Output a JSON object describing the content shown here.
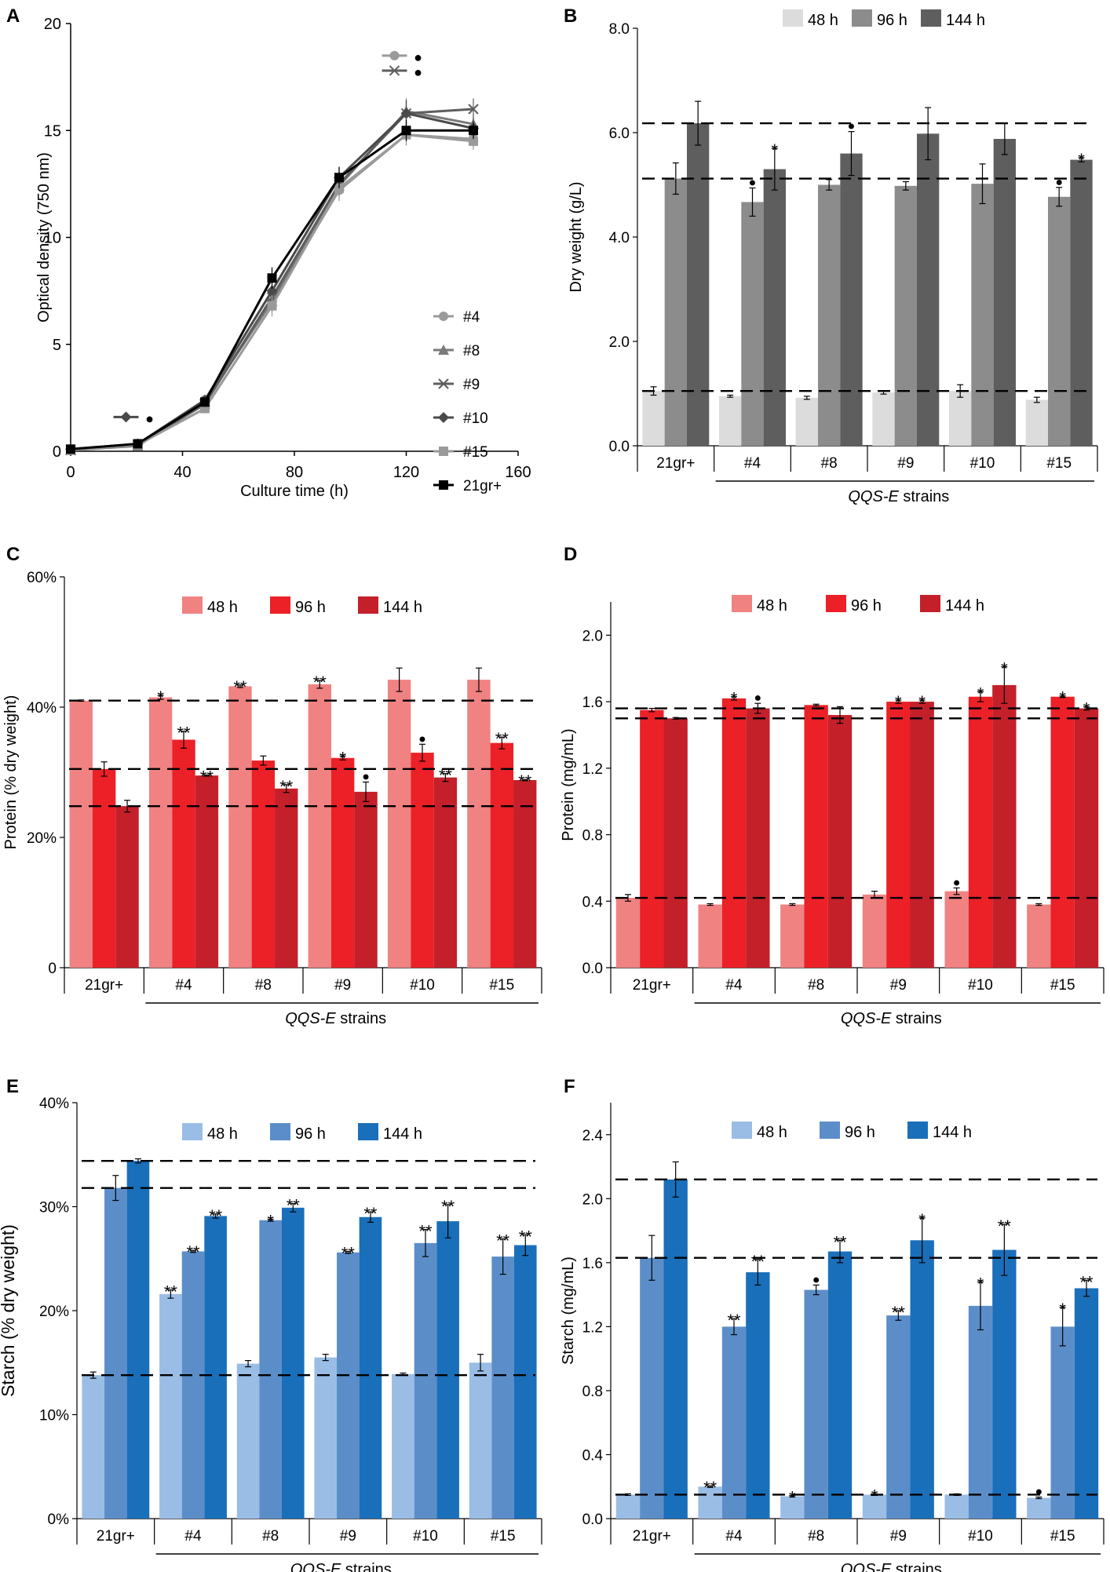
{
  "figure": {
    "colors": {
      "gray48": "#dcdcdc",
      "gray96": "#8c8c8c",
      "gray144": "#5e5e5e",
      "red48": "#f08282",
      "red96": "#ec2027",
      "red144": "#c4202a",
      "blue48": "#9abde6",
      "blue96": "#5b8ec9",
      "blue144": "#1a6fba",
      "dash": "#000000",
      "err": "#000000"
    },
    "group_caption": "QQS-E strains"
  },
  "chart_data": [
    {
      "panel": "A",
      "type": "line",
      "xlabel": "Culture time (h)",
      "ylabel": "Optical density (750 nm)",
      "xlim": [
        0,
        160
      ],
      "ylim": [
        0,
        20
      ],
      "xticks": [
        "0",
        "40",
        "80",
        "120",
        "160"
      ],
      "yticks": [
        "0",
        "5",
        "10",
        "15",
        "20"
      ],
      "x": [
        0,
        24,
        48,
        72,
        96,
        120,
        144
      ],
      "series": [
        {
          "name": "#4",
          "marker": "circle",
          "color": "#9a9a9a",
          "values": [
            0.05,
            0.3,
            2.4,
            7.0,
            12.2,
            14.8,
            14.6
          ],
          "err": [
            0.1,
            0.1,
            0.2,
            0.5,
            0.5,
            0.5,
            0.4
          ]
        },
        {
          "name": "#8",
          "marker": "triangle",
          "color": "#7a7a7a",
          "values": [
            0.05,
            0.25,
            2.3,
            7.0,
            12.4,
            15.9,
            15.3
          ],
          "err": [
            0.1,
            0.1,
            0.2,
            0.5,
            0.5,
            0.6,
            0.5
          ]
        },
        {
          "name": "#9",
          "marker": "x",
          "color": "#5e5e5e",
          "values": [
            0.05,
            0.3,
            2.2,
            7.2,
            12.5,
            15.8,
            16.0
          ],
          "err": [
            0.1,
            0.1,
            0.2,
            0.5,
            0.5,
            0.6,
            0.5
          ]
        },
        {
          "name": "#10",
          "marker": "diamond",
          "color": "#4a4a4a",
          "values": [
            0.1,
            0.35,
            2.4,
            7.5,
            12.8,
            15.8,
            15.1
          ],
          "err": [
            0.1,
            0.1,
            0.2,
            0.5,
            0.5,
            0.6,
            0.5
          ]
        },
        {
          "name": "#15",
          "marker": "square",
          "color": "#9a9a9a",
          "values": [
            0.05,
            0.3,
            2.0,
            6.8,
            12.3,
            14.8,
            14.5
          ],
          "err": [
            0.1,
            0.1,
            0.2,
            0.5,
            0.5,
            0.5,
            0.4
          ]
        },
        {
          "name": "21gr+",
          "marker": "square",
          "color": "#000000",
          "values": [
            0.1,
            0.35,
            2.3,
            8.1,
            12.8,
            15.0,
            15.0
          ],
          "err": [
            0.1,
            0.1,
            0.2,
            0.5,
            0.5,
            0.5,
            0.4
          ]
        }
      ],
      "annotations": [
        {
          "x": 120,
          "y": 18.5,
          "text": "●",
          "ref_marker": "circle"
        },
        {
          "x": 120,
          "y": 17.8,
          "text": "●",
          "ref_marker": "x"
        },
        {
          "x": 24,
          "y": 1.6,
          "text": "●",
          "ref_marker": "diamond"
        }
      ]
    },
    {
      "panel": "B",
      "type": "bar",
      "ylabel": "Dry weight (g/L)",
      "ylim": [
        0,
        8
      ],
      "yticks": [
        "0.0",
        "2.0",
        "4.0",
        "6.0",
        "8.0"
      ],
      "categories": [
        "21gr+",
        "#4",
        "#8",
        "#9",
        "#10",
        "#15"
      ],
      "legend": [
        "48 h",
        "96 h",
        "144 h"
      ],
      "palette": [
        "gray48",
        "gray96",
        "gray144"
      ],
      "series": [
        {
          "name": "48 h",
          "values": [
            1.05,
            0.95,
            0.92,
            1.02,
            1.05,
            0.88
          ],
          "err": [
            0.08,
            0.02,
            0.03,
            0.03,
            0.12,
            0.05
          ],
          "marks": [
            "",
            "",
            "",
            "",
            "",
            ""
          ]
        },
        {
          "name": "96 h",
          "values": [
            5.12,
            4.67,
            5.0,
            4.98,
            5.02,
            4.77
          ],
          "err": [
            0.3,
            0.27,
            0.1,
            0.08,
            0.38,
            0.18
          ],
          "marks": [
            "",
            "●",
            "",
            "",
            "",
            "●"
          ]
        },
        {
          "name": "144 h",
          "values": [
            6.18,
            5.3,
            5.6,
            5.98,
            5.88,
            5.48
          ],
          "err": [
            0.42,
            0.4,
            0.42,
            0.5,
            0.3,
            0.04
          ],
          "marks": [
            "",
            "*",
            "●",
            "",
            "",
            "*"
          ]
        }
      ],
      "reference_lines": [
        6.18,
        5.12,
        1.05
      ]
    },
    {
      "panel": "C",
      "type": "bar",
      "ylabel": "Protein (% dry weight)",
      "ylim": [
        0,
        60
      ],
      "yticks": [
        "0",
        "20%",
        "40%",
        "60%"
      ],
      "categories": [
        "21gr+",
        "#4",
        "#8",
        "#9",
        "#10",
        "#15"
      ],
      "legend": [
        "48 h",
        "96 h",
        "144 h"
      ],
      "palette": [
        "red48",
        "red96",
        "red144"
      ],
      "series": [
        {
          "name": "48 h",
          "values": [
            41.0,
            41.5,
            43.2,
            43.5,
            44.2,
            44.2
          ],
          "err": [
            0.1,
            0.3,
            0.2,
            0.6,
            1.8,
            1.8
          ],
          "marks": [
            "",
            "*",
            "**",
            "**",
            "",
            ""
          ]
        },
        {
          "name": "96 h",
          "values": [
            30.5,
            35.0,
            31.8,
            32.2,
            33.0,
            34.5
          ],
          "err": [
            1.1,
            1.3,
            0.7,
            0.3,
            1.3,
            0.9
          ],
          "marks": [
            "",
            "**",
            "",
            "*",
            "●",
            "**"
          ]
        },
        {
          "name": "144 h",
          "values": [
            24.8,
            29.5,
            27.5,
            27.0,
            29.2,
            28.8
          ],
          "err": [
            0.9,
            0.1,
            0.6,
            1.5,
            0.6,
            0.1
          ],
          "marks": [
            "",
            "**",
            "**",
            "●",
            "**",
            "**"
          ]
        }
      ],
      "reference_lines": [
        41.0,
        30.5,
        24.8
      ]
    },
    {
      "panel": "D",
      "type": "bar",
      "ylabel": "Protein (mg/mL)",
      "ylim": [
        0,
        2.2
      ],
      "yticks": [
        "0.0",
        "0.4",
        "0.8",
        "1.2",
        "1.6",
        "2.0"
      ],
      "categories": [
        "21gr+",
        "#4",
        "#8",
        "#9",
        "#10",
        "#15"
      ],
      "legend": [
        "48 h",
        "96 h",
        "144 h"
      ],
      "palette": [
        "red48",
        "red96",
        "red144"
      ],
      "series": [
        {
          "name": "48 h",
          "values": [
            0.42,
            0.38,
            0.38,
            0.44,
            0.46,
            0.38
          ],
          "err": [
            0.02,
            0.005,
            0.005,
            0.02,
            0.02,
            0.005
          ],
          "marks": [
            "",
            "",
            "",
            "",
            "●",
            ""
          ]
        },
        {
          "name": "96 h",
          "values": [
            1.55,
            1.62,
            1.58,
            1.6,
            1.63,
            1.63
          ],
          "err": [
            0.01,
            0.01,
            0.005,
            0.01,
            0.03,
            0.005
          ],
          "marks": [
            "",
            "*",
            "",
            "*",
            "*",
            "*"
          ]
        },
        {
          "name": "144 h",
          "values": [
            1.5,
            1.56,
            1.52,
            1.6,
            1.7,
            1.56
          ],
          "err": [
            0.005,
            0.03,
            0.05,
            0.01,
            0.11,
            0.01
          ],
          "marks": [
            "",
            "●",
            "",
            "*",
            "*",
            "*"
          ]
        }
      ],
      "reference_lines": [
        1.56,
        1.5,
        0.42
      ]
    },
    {
      "panel": "E",
      "type": "bar",
      "ylabel": "Starch (% dry weight)",
      "ylim": [
        0,
        40
      ],
      "yticks": [
        "0%",
        "10%",
        "20%",
        "30%",
        "40%"
      ],
      "categories": [
        "21gr+",
        "#4",
        "#8",
        "#9",
        "#10",
        "#15"
      ],
      "legend": [
        "48 h",
        "96 h",
        "144 h"
      ],
      "palette": [
        "blue48",
        "blue96",
        "blue144"
      ],
      "series": [
        {
          "name": "48 h",
          "values": [
            13.8,
            21.6,
            14.9,
            15.5,
            13.9,
            15.0
          ],
          "err": [
            0.3,
            0.4,
            0.3,
            0.3,
            0.1,
            0.8
          ],
          "marks": [
            "",
            "**",
            "",
            "",
            "",
            ""
          ]
        },
        {
          "name": "96 h",
          "values": [
            31.8,
            25.7,
            28.7,
            25.6,
            26.5,
            25.2
          ],
          "err": [
            1.2,
            0.1,
            0.1,
            0.1,
            1.3,
            1.7
          ],
          "marks": [
            "",
            "**",
            "*",
            "**",
            "**",
            "**"
          ]
        },
        {
          "name": "144 h",
          "values": [
            34.4,
            29.1,
            29.9,
            29.0,
            28.6,
            26.3
          ],
          "err": [
            0.2,
            0.2,
            0.4,
            0.5,
            1.6,
            1.0
          ],
          "marks": [
            "",
            "**",
            "**",
            "**",
            "**",
            "**"
          ]
        }
      ],
      "reference_lines": [
        34.4,
        31.8,
        13.8
      ]
    },
    {
      "panel": "F",
      "type": "bar",
      "ylabel": "Starch (mg/mL)",
      "ylim": [
        0,
        2.6
      ],
      "yticks": [
        "0.0",
        "0.4",
        "0.8",
        "1.2",
        "1.6",
        "2.0",
        "2.4"
      ],
      "categories": [
        "21gr+",
        "#4",
        "#8",
        "#9",
        "#10",
        "#15"
      ],
      "legend": [
        "48 h",
        "96 h",
        "144 h"
      ],
      "palette": [
        "blue48",
        "blue96",
        "blue144"
      ],
      "series": [
        {
          "name": "48 h",
          "values": [
            0.15,
            0.2,
            0.14,
            0.15,
            0.15,
            0.13
          ],
          "err": [
            0.005,
            0.005,
            0.005,
            0.005,
            0.005,
            0.005
          ],
          "marks": [
            "",
            "**",
            "*",
            "*",
            "",
            "●"
          ]
        },
        {
          "name": "96 h",
          "values": [
            1.63,
            1.2,
            1.43,
            1.27,
            1.33,
            1.2
          ],
          "err": [
            0.14,
            0.05,
            0.03,
            0.03,
            0.15,
            0.12
          ],
          "marks": [
            "",
            "**",
            "●",
            "**",
            "*",
            "*"
          ]
        },
        {
          "name": "144 h",
          "values": [
            2.12,
            1.54,
            1.67,
            1.74,
            1.68,
            1.44
          ],
          "err": [
            0.11,
            0.08,
            0.07,
            0.14,
            0.16,
            0.05
          ],
          "marks": [
            "",
            "**",
            "**",
            "*",
            "**",
            "**"
          ]
        }
      ],
      "reference_lines": [
        2.12,
        1.63,
        0.15
      ]
    }
  ]
}
